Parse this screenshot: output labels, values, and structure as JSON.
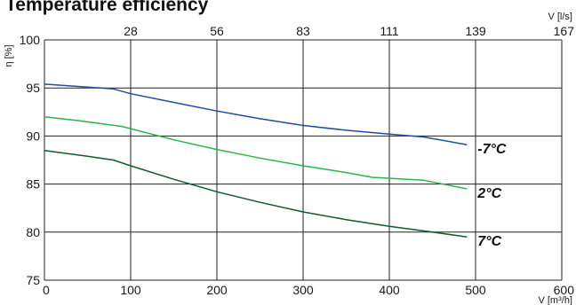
{
  "chart_data": {
    "type": "line",
    "title": "Temperature efficiency",
    "ylabel": "η [%]",
    "xlabel": "V [m³/h]",
    "x2label": "V [l/s]",
    "xlim": [
      0,
      600
    ],
    "ylim": [
      75,
      100
    ],
    "x_ticks": [
      0,
      100,
      200,
      300,
      400,
      500,
      600
    ],
    "x_tick_labels": [
      "0",
      "100",
      "200",
      "300",
      "400",
      "500",
      "600"
    ],
    "y_ticks": [
      75,
      80,
      85,
      90,
      95,
      100
    ],
    "y_tick_labels": [
      "75",
      "80",
      "85",
      "90",
      "95",
      "100"
    ],
    "x2_ticks": [
      {
        "at": 100,
        "label": "28"
      },
      {
        "at": 200,
        "label": "56"
      },
      {
        "at": 300,
        "label": "83"
      },
      {
        "at": 400,
        "label": "111"
      },
      {
        "at": 500,
        "label": "139"
      },
      {
        "at": 600,
        "label": "167"
      }
    ],
    "grid": true,
    "series": [
      {
        "name": "-7°C",
        "color": "#1f4e9c",
        "x": [
          0,
          80,
          100,
          150,
          200,
          250,
          300,
          350,
          400,
          440,
          490
        ],
        "y": [
          95.4,
          94.9,
          94.4,
          93.5,
          92.6,
          91.8,
          91.1,
          90.6,
          90.2,
          89.9,
          89.1
        ]
      },
      {
        "name": "2°C",
        "color": "#2db34a",
        "x": [
          0,
          40,
          90,
          150,
          200,
          250,
          300,
          350,
          380,
          440,
          490
        ],
        "y": [
          92.0,
          91.6,
          91.0,
          89.6,
          88.6,
          87.7,
          86.9,
          86.2,
          85.7,
          85.4,
          84.5
        ]
      },
      {
        "name": "7°C",
        "color": "#0e5c2e",
        "x": [
          0,
          50,
          80,
          100,
          150,
          200,
          250,
          300,
          350,
          400,
          450,
          490
        ],
        "y": [
          88.5,
          87.9,
          87.5,
          86.9,
          85.5,
          84.2,
          83.1,
          82.1,
          81.3,
          80.6,
          80.0,
          79.5
        ]
      }
    ]
  }
}
